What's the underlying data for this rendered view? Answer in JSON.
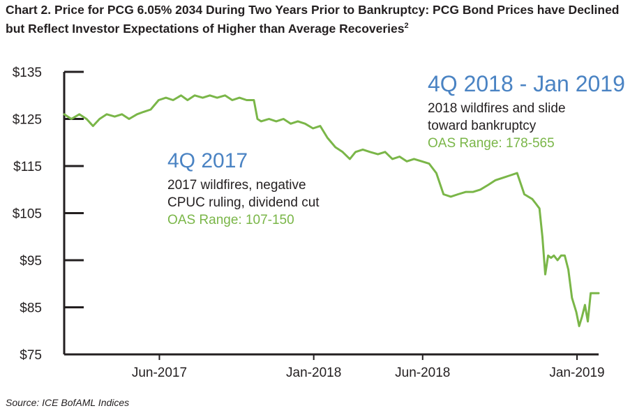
{
  "title": "Chart 2. Price for PCG 6.05% 2034 During Two Years Prior to Bankruptcy: PCG Bond Prices have Declined but Reflect Investor Expectations of Higher than Average Recoveries",
  "title_superscript": "2",
  "source": "Source: ICE BofAML Indices",
  "chart_data": {
    "type": "line",
    "title": "Chart 2. Price for PCG 6.05% 2034 During Two Years Prior to Bankruptcy: PCG Bond Prices have Declined but Reflect Investor Expectations of Higher than Average Recoveries",
    "xlabel": "",
    "ylabel": "",
    "ylim": [
      75,
      135
    ],
    "xlim": [
      "2017-01-20",
      "2019-01-31"
    ],
    "y_ticks": [
      {
        "value": 135,
        "label": "$135"
      },
      {
        "value": 125,
        "label": "$125"
      },
      {
        "value": 115,
        "label": "$115"
      },
      {
        "value": 105,
        "label": "$105"
      },
      {
        "value": 95,
        "label": "$95"
      },
      {
        "value": 85,
        "label": "$85"
      },
      {
        "value": 75,
        "label": "$75"
      }
    ],
    "x_ticks": [
      {
        "value": "2017-06-01",
        "label": "Jun-2017"
      },
      {
        "value": "2018-01-01",
        "label": "Jan-2018"
      },
      {
        "value": "2018-06-01",
        "label": "Jun-2018"
      },
      {
        "value": "2019-01-01",
        "label": "Jan-2019"
      }
    ],
    "line_color": "#7ab648",
    "series": [
      {
        "x": [
          "2017-01-20",
          "2017-01-30",
          "2017-02-10",
          "2017-02-20",
          "2017-03-01",
          "2017-03-10",
          "2017-03-20",
          "2017-03-31",
          "2017-04-10",
          "2017-04-20",
          "2017-05-01",
          "2017-05-10",
          "2017-05-20",
          "2017-05-31",
          "2017-06-10",
          "2017-06-20",
          "2017-07-01",
          "2017-07-10",
          "2017-07-20",
          "2017-07-31",
          "2017-08-10",
          "2017-08-20",
          "2017-08-31",
          "2017-09-10",
          "2017-09-20",
          "2017-09-30",
          "2017-10-10",
          "2017-10-15",
          "2017-10-20",
          "2017-10-31",
          "2017-11-10",
          "2017-11-20",
          "2017-11-30",
          "2017-12-10",
          "2017-12-20",
          "2017-12-31",
          "2018-01-10",
          "2018-01-20",
          "2018-01-31",
          "2018-02-10",
          "2018-02-20",
          "2018-02-28",
          "2018-03-10",
          "2018-03-20",
          "2018-03-31",
          "2018-04-10",
          "2018-04-20",
          "2018-04-30",
          "2018-05-10",
          "2018-05-20",
          "2018-05-31",
          "2018-06-10",
          "2018-06-20",
          "2018-06-30",
          "2018-07-10",
          "2018-07-20",
          "2018-07-31",
          "2018-08-10",
          "2018-08-20",
          "2018-08-31",
          "2018-09-10",
          "2018-09-20",
          "2018-09-30",
          "2018-10-10",
          "2018-10-20",
          "2018-10-31",
          "2018-11-05",
          "2018-11-10",
          "2018-11-14",
          "2018-11-18",
          "2018-11-22",
          "2018-11-26",
          "2018-11-30",
          "2018-12-05",
          "2018-12-10",
          "2018-12-15",
          "2018-12-20",
          "2018-12-25",
          "2018-12-31",
          "2019-01-04",
          "2019-01-08",
          "2019-01-12",
          "2019-01-16",
          "2019-01-20",
          "2019-01-25",
          "2019-01-31"
        ],
        "y": [
          126,
          125,
          126,
          125,
          123.5,
          125,
          126,
          125.5,
          126,
          125,
          126,
          126.5,
          127,
          129,
          129.5,
          129,
          130,
          129,
          130,
          129.5,
          130,
          129.5,
          130,
          129,
          129.5,
          129,
          129,
          125,
          124.5,
          125,
          124.5,
          125,
          124,
          124.5,
          124,
          123,
          123.5,
          121,
          119,
          118,
          116.5,
          118,
          118.5,
          118,
          117.5,
          118,
          116.5,
          117,
          116,
          116.5,
          116,
          115.5,
          113.5,
          109,
          108.5,
          109,
          109.5,
          109.5,
          110,
          111,
          112,
          112.5,
          113,
          113.5,
          109,
          108,
          107,
          106,
          100,
          92,
          96,
          95.5,
          96,
          95,
          96,
          96,
          93,
          87,
          84,
          81,
          83,
          85.5,
          82,
          88,
          88,
          88
        ]
      }
    ],
    "annotations": [
      {
        "heading": "4Q 2017",
        "lines": [
          "2017 wildfires, negative",
          "CPUC ruling, dividend cut"
        ],
        "range": "OAS Range: 107-150"
      },
      {
        "heading": "4Q 2018 - Jan 2019",
        "lines": [
          "2018 wildfires and slide",
          "toward bankruptcy"
        ],
        "range": "OAS Range: 178-565"
      }
    ]
  }
}
